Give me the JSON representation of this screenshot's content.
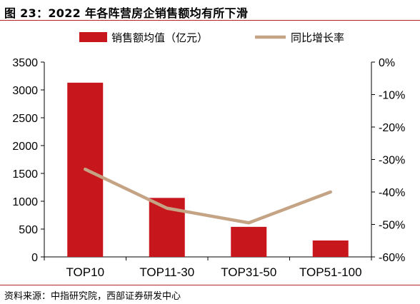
{
  "figure_title": "图 23：2022 年各阵营房企销售额均有所下滑",
  "source": "资料来源：中指研究院，西部证券研发中心",
  "colors": {
    "bar": "#c8161d",
    "line": "#c4a484",
    "rule": "#b3252b"
  },
  "chart_data": {
    "type": "bar",
    "categories": [
      "TOP10",
      "TOP11-30",
      "TOP31-50",
      "TOP51-100"
    ],
    "series": [
      {
        "name": "销售额均值（亿元）",
        "type": "bar",
        "axis": "left",
        "values": [
          3130,
          1060,
          540,
          295
        ]
      },
      {
        "name": "同比增长率",
        "type": "line",
        "axis": "right",
        "values": [
          -33,
          -45,
          -49.5,
          -40
        ]
      }
    ],
    "left_axis": {
      "ylim": [
        0,
        3500
      ],
      "ticks": [
        "0",
        "500",
        "1000",
        "1500",
        "2000",
        "2500",
        "3000",
        "3500"
      ]
    },
    "right_axis": {
      "ylim": [
        -60,
        0
      ],
      "ticks": [
        "-60%",
        "-50%",
        "-40%",
        "-30%",
        "-20%",
        "-10%",
        "0%"
      ]
    },
    "legend_position": "top",
    "grid": false
  }
}
